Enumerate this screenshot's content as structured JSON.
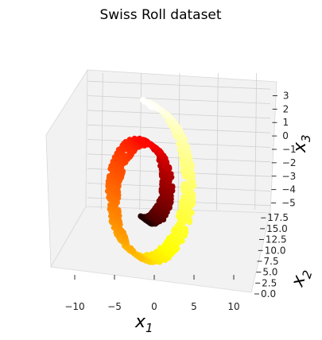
{
  "chart_data": {
    "type": "scatter",
    "projection": "3d",
    "title": "Swiss Roll dataset",
    "grid": true,
    "colormap": "hot",
    "color_by": "unrolled roll position",
    "axes": {
      "x1": {
        "label": "x",
        "sub": "1",
        "lim": [
          -12,
          12
        ],
        "ticks": [
          -10,
          -5,
          0,
          5,
          10
        ],
        "tick_labels": [
          "−10",
          "−5",
          "0",
          "5",
          "10"
        ]
      },
      "x2": {
        "label": "x",
        "sub": "2",
        "lim": [
          0,
          19
        ],
        "ticks": [
          0,
          2.5,
          5,
          7.5,
          10,
          12.5,
          15,
          17.5
        ],
        "tick_labels": [
          "0.0",
          "2.5",
          "5.0",
          "7.5",
          "10.0",
          "12.5",
          "15.0",
          "17.5"
        ]
      },
      "x3": {
        "label": "x",
        "sub": "3",
        "lim": [
          -5.5,
          3.5
        ],
        "ticks": [
          -5,
          -4,
          -3,
          -2,
          -1,
          0,
          1,
          2,
          3
        ],
        "tick_labels": [
          "−5",
          "−4",
          "−3",
          "−2",
          "−1",
          "0",
          "1",
          "2",
          "3"
        ]
      }
    },
    "data_note": "",
    "points_approx": []
  }
}
